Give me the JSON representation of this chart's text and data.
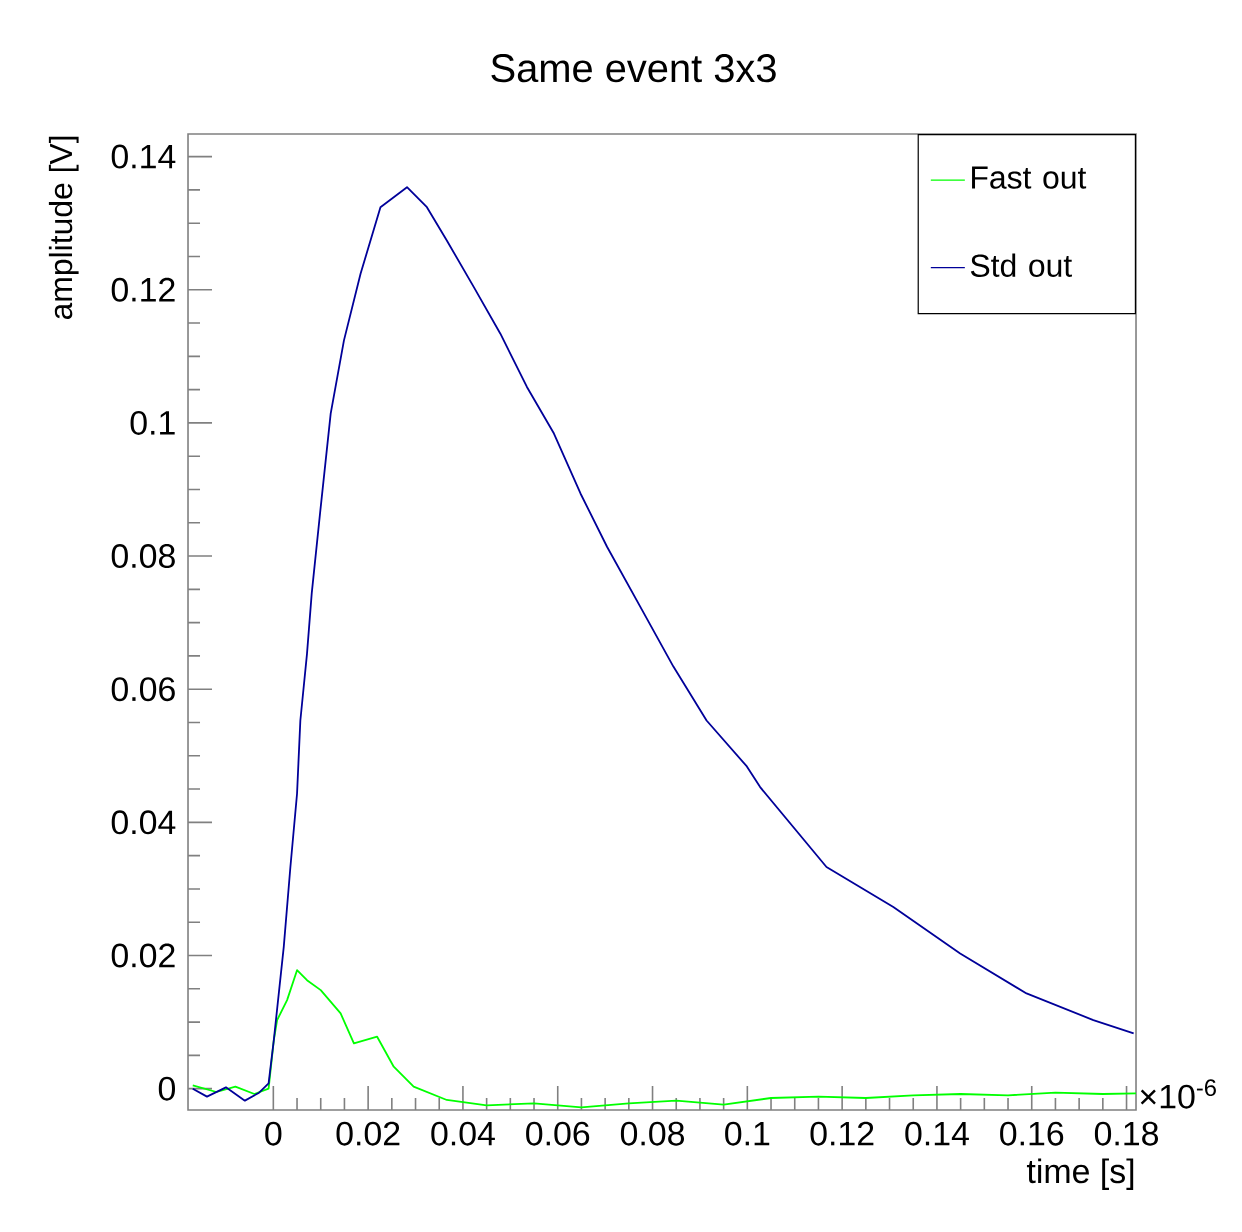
{
  "chart_data": {
    "type": "line",
    "title": "Same event 3x3",
    "xlabel": "time [s]",
    "ylabel": "amplitude [V]",
    "annotations": [
      "×10$^{-6}$"
    ],
    "xlim": [
      -0.018,
      0.182
    ],
    "ylim": [
      -0.0032,
      0.1434
    ],
    "xticks": [
      0,
      0.02,
      0.04,
      0.06,
      0.08,
      0.1,
      0.12,
      0.14,
      0.16,
      0.18
    ],
    "yticks": [
      0,
      0.02,
      0.04,
      0.06,
      0.08,
      0.1,
      0.12,
      0.14
    ],
    "legend": "top right",
    "series": [
      {
        "name": "Fast out",
        "color": "#00ff00",
        "x": [
          -0.017,
          -0.012,
          -0.008,
          -0.004,
          -0.001,
          0.0001,
          0.0008,
          0.0029,
          0.005,
          0.0071,
          0.01,
          0.0142,
          0.017,
          0.0219,
          0.0254,
          0.0296,
          0.0366,
          0.045,
          0.055,
          0.065,
          0.075,
          0.085,
          0.095,
          0.105,
          0.115,
          0.125,
          0.135,
          0.145,
          0.155,
          0.165,
          0.175,
          0.182
        ],
        "values": [
          0.0005,
          -0.0005,
          0.0003,
          -0.0008,
          0.0,
          0.0073,
          0.0103,
          0.0133,
          0.0178,
          0.0163,
          0.0148,
          0.0113,
          0.0068,
          0.0078,
          0.0033,
          0.0003,
          -0.0017,
          -0.0025,
          -0.0022,
          -0.0028,
          -0.0022,
          -0.0018,
          -0.0024,
          -0.0014,
          -0.0012,
          -0.0014,
          -0.001,
          -0.0008,
          -0.001,
          -0.0006,
          -0.0008,
          -0.0007
        ]
      },
      {
        "name": "Std out",
        "color": "#000099",
        "x": [
          -0.017,
          -0.014,
          -0.01,
          -0.006,
          -0.003,
          -0.001,
          0.0001,
          0.0022,
          0.0036,
          0.005,
          0.0057,
          0.0071,
          0.0081,
          0.01,
          0.0121,
          0.0149,
          0.0184,
          0.0226,
          0.0282,
          0.0324,
          0.0366,
          0.0423,
          0.0479,
          0.0535,
          0.0592,
          0.0648,
          0.0704,
          0.0774,
          0.0844,
          0.0914,
          0.0999,
          0.1027,
          0.1167,
          0.1308,
          0.1449,
          0.1589,
          0.173,
          0.1815
        ],
        "values": [
          0.0,
          -0.0012,
          0.0002,
          -0.0018,
          -0.0006,
          0.0008,
          0.0073,
          0.0213,
          0.0333,
          0.0443,
          0.0553,
          0.0653,
          0.0744,
          0.0874,
          0.1014,
          0.1124,
          0.1224,
          0.1324,
          0.1354,
          0.1324,
          0.1274,
          0.1204,
          0.1134,
          0.1054,
          0.0984,
          0.0894,
          0.0814,
          0.0724,
          0.0634,
          0.0553,
          0.0484,
          0.0453,
          0.0333,
          0.0273,
          0.0203,
          0.0143,
          0.0103,
          0.0083
        ]
      }
    ]
  }
}
